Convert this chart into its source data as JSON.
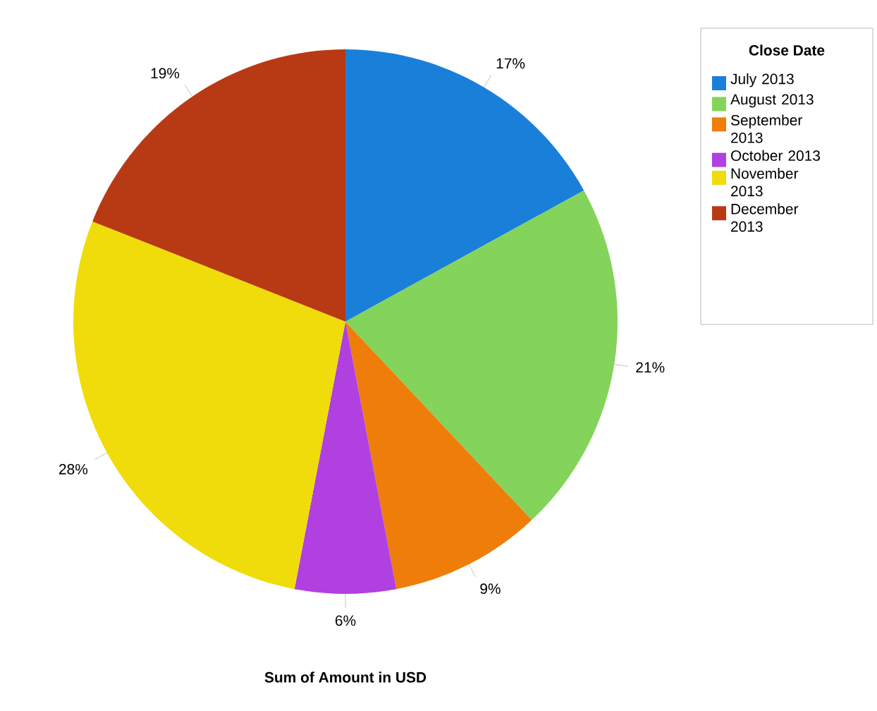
{
  "chart_data": {
    "type": "pie",
    "xlabel": "Sum of Amount in USD",
    "legend_title": "Close Date",
    "legend": "top right",
    "categories": [
      "July 2013",
      "August 2013",
      "September 2013",
      "October 2013",
      "November 2013",
      "December 2013"
    ],
    "values": [
      17,
      21,
      9,
      6,
      28,
      19
    ],
    "value_labels": [
      "17%",
      "21%",
      "9%",
      "6%",
      "28%",
      "19%"
    ],
    "colors": [
      "#1a7fd9",
      "#84d35a",
      "#ef7d0a",
      "#b040e0",
      "#f0dc0a",
      "#b83a14"
    ]
  }
}
